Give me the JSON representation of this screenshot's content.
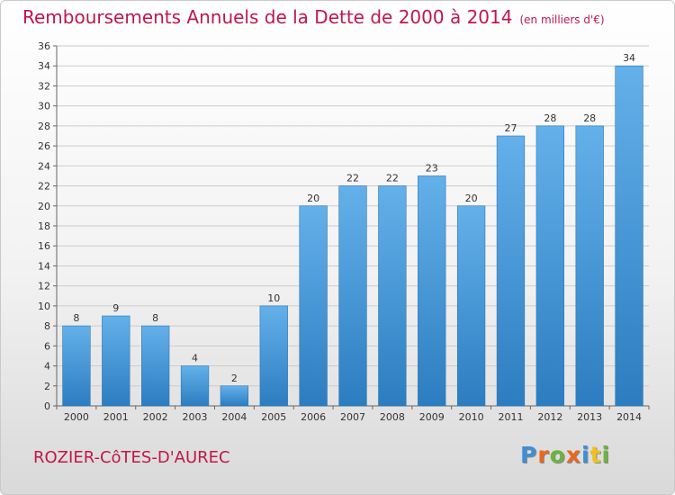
{
  "header": {
    "title": "Remboursements Annuels de la Dette de 2000 à 2014",
    "unit": "(en milliers d'€)"
  },
  "footer": {
    "place": "ROZIER-CôTES-D'AUREC",
    "logo_letters": [
      "P",
      "r",
      "o",
      "x",
      "i",
      "t",
      "i"
    ],
    "logo_colors": [
      "#3f8ed6",
      "#e8681f",
      "#6cb33f",
      "#e8681f",
      "#3f8ed6",
      "#f2c21c",
      "#6cb33f"
    ]
  },
  "colors": {
    "accent": "#c0174a",
    "bar_top": "#64b0ea",
    "bar_bottom": "#2c7dc0",
    "grid": "#cccccc",
    "axis": "#666666"
  },
  "chart_data": {
    "type": "bar",
    "categories": [
      "2000",
      "2001",
      "2002",
      "2003",
      "2004",
      "2005",
      "2006",
      "2007",
      "2008",
      "2009",
      "2010",
      "2011",
      "2012",
      "2013",
      "2014"
    ],
    "values": [
      8,
      9,
      8,
      4,
      2,
      10,
      20,
      22,
      22,
      23,
      20,
      27,
      28,
      28,
      34
    ],
    "ylim": [
      0,
      36
    ],
    "ytick_step": 2,
    "grid": true
  }
}
